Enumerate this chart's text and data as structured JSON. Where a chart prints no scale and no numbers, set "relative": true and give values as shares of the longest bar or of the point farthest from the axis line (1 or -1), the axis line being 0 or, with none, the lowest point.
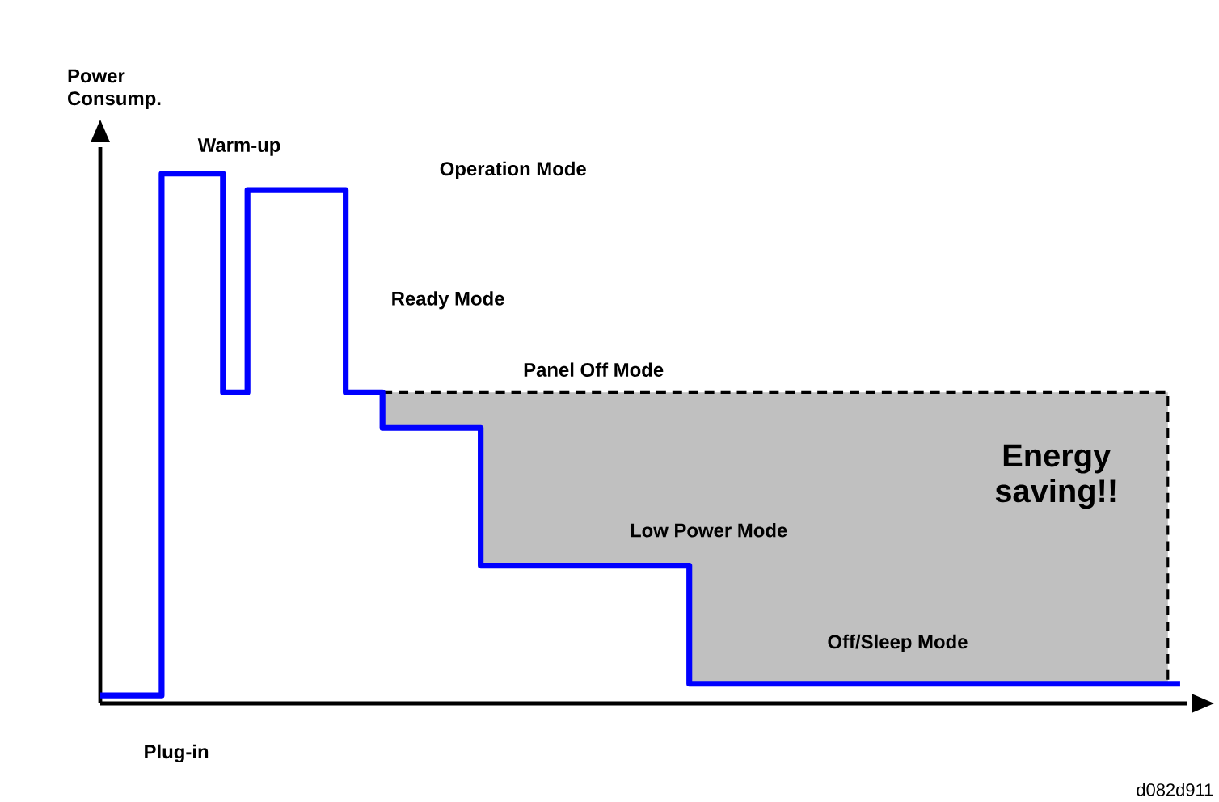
{
  "chart_data": {
    "type": "step",
    "relative": true,
    "tick_labels": false,
    "ylabel": "Power Consump.",
    "categories": [
      null,
      null,
      null,
      null,
      null,
      null,
      null,
      null,
      null,
      null,
      null,
      null,
      null,
      null,
      null,
      null,
      null,
      null,
      null,
      null,
      null,
      null,
      null,
      null,
      null,
      null,
      null,
      null,
      null,
      null,
      null,
      null,
      null,
      null,
      null,
      null,
      null,
      null,
      null,
      null,
      null,
      null,
      null,
      null,
      null,
      null,
      null,
      null,
      null,
      null,
      null,
      null,
      null,
      null,
      null,
      null,
      null,
      null,
      null,
      null,
      null,
      null,
      null,
      null,
      null,
      null,
      null,
      null,
      null,
      null,
      null,
      null,
      null,
      null,
      null,
      null,
      null,
      null,
      null,
      null,
      null,
      null,
      null,
      null,
      null,
      null,
      null,
      null,
      null
    ],
    "series": [
      {
        "type": "area",
        "color": "#c0c0c0",
        "line_style": "dashed",
        "values": [
          null,
          null,
          null,
          null,
          null,
          null,
          null,
          null,
          null,
          null,
          null,
          null,
          null,
          null,
          null,
          null,
          null,
          null,
          null,
          null,
          null,
          null,
          null,
          0.587,
          0.587,
          0.587,
          0.587,
          0.587,
          0.587,
          0.587,
          0.587,
          0.587,
          0.587,
          0.587,
          0.587,
          0.587,
          0.587,
          0.587,
          0.587,
          0.587,
          0.587,
          0.587,
          0.587,
          0.587,
          0.587,
          0.587,
          0.587,
          0.587,
          0.587,
          0.587,
          0.587,
          0.587,
          0.587,
          0.587,
          0.587,
          0.587,
          0.587,
          0.587,
          0.587,
          0.587,
          0.587,
          0.587,
          0.587,
          0.587,
          0.587,
          0.587,
          0.587,
          0.587,
          0.587,
          0.587,
          0.587,
          0.587,
          0.587,
          0.587,
          0.587,
          0.587,
          0.587,
          0.587,
          0.587,
          0.587,
          0.587,
          0.587,
          0.587,
          0.587,
          0.587,
          0.587,
          0.587,
          0.587,
          null
        ]
      },
      {
        "color": "#0000ff",
        "values": [
          0.015,
          0.015,
          0.015,
          0.015,
          0.015,
          1,
          1,
          1,
          1,
          1,
          0.587,
          0.587,
          0.969,
          0.969,
          0.969,
          0.969,
          0.969,
          0.969,
          0.969,
          0.969,
          0.587,
          0.587,
          0.587,
          0.52,
          0.52,
          0.52,
          0.52,
          0.52,
          0.52,
          0.52,
          0.52,
          0.26,
          0.26,
          0.26,
          0.26,
          0.26,
          0.26,
          0.26,
          0.26,
          0.26,
          0.26,
          0.26,
          0.26,
          0.26,
          0.26,
          0.26,
          0.26,
          0.26,
          0.037,
          0.037,
          0.037,
          0.037,
          0.037,
          0.037,
          0.037,
          0.037,
          0.037,
          0.037,
          0.037,
          0.037,
          0.037,
          0.037,
          0.037,
          0.037,
          0.037,
          0.037,
          0.037,
          0.037,
          0.037,
          0.037,
          0.037,
          0.037,
          0.037,
          0.037,
          0.037,
          0.037,
          0.037,
          0.037,
          0.037,
          0.037,
          0.037,
          0.037,
          0.037,
          0.037,
          0.037,
          0.037,
          0.037,
          0.037,
          0.037
        ]
      }
    ],
    "annotations": [
      "Warm-up",
      "Operation Mode",
      "Ready Mode",
      "Panel Off Mode",
      "Energy saving!!",
      "Low Power Mode",
      "Off/Sleep Mode",
      "Plug-in",
      "d082d911"
    ]
  }
}
